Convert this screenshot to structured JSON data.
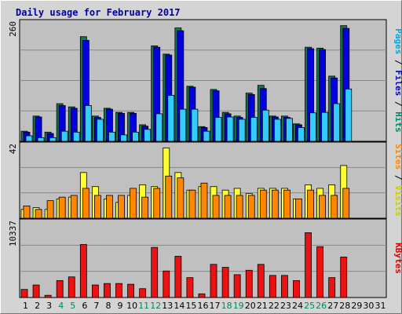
{
  "chart_data": {
    "type": "bar",
    "title": "Daily usage for February 2017",
    "categories": [
      "1",
      "2",
      "3",
      "4",
      "5",
      "6",
      "7",
      "8",
      "9",
      "10",
      "11",
      "12",
      "13",
      "14",
      "15",
      "16",
      "17",
      "18",
      "19",
      "20",
      "21",
      "22",
      "23",
      "24",
      "25",
      "26",
      "27",
      "28",
      "29",
      "30",
      "31"
    ],
    "weekend_days": [
      "4",
      "5",
      "11",
      "12",
      "18",
      "19",
      "25",
      "26"
    ],
    "panels": [
      {
        "name": "hits-files-pages",
        "ymax_label": "260",
        "ylim": [
          0,
          260
        ],
        "axis_labels": [
          {
            "text": "Pages",
            "color": "#00aadd"
          },
          {
            "text": " / ",
            "color": "#000000"
          },
          {
            "text": "Files",
            "color": "#0000cc"
          },
          {
            "text": " / ",
            "color": "#000000"
          },
          {
            "text": "Hits",
            "color": "#008866"
          }
        ],
        "series": [
          {
            "name": "Hits",
            "color": "#117755",
            "values": [
              22,
              55,
              20,
              82,
              75,
              228,
              55,
              72,
              63,
              63,
              36,
              208,
              190,
              247,
              120,
              32,
              113,
              63,
              55,
              105,
              122,
              55,
              55,
              38,
              205,
              203,
              142,
              252,
              0,
              0,
              0
            ]
          },
          {
            "name": "Files",
            "color": "#0000dd",
            "values": [
              20,
              53,
              17,
              78,
              72,
              220,
              52,
              70,
              61,
              61,
              33,
              205,
              188,
              241,
              118,
              30,
              110,
              60,
              52,
              102,
              115,
              53,
              52,
              36,
              202,
              200,
              138,
              246,
              0,
              0,
              0
            ]
          },
          {
            "name": "Pages",
            "color": "#33ccff",
            "values": [
              12,
              8,
              8,
              22,
              20,
              78,
              48,
              20,
              14,
              20,
              26,
              60,
              100,
              70,
              70,
              22,
              52,
              53,
              48,
              52,
              68,
              48,
              50,
              30,
              62,
              63,
              82,
              114,
              0,
              0,
              0
            ]
          }
        ]
      },
      {
        "name": "visits-sites",
        "ymax_label": "42",
        "ylim": [
          0,
          42
        ],
        "axis_labels": [
          {
            "text": "Sites",
            "color": "#ff8800"
          },
          {
            "text": " / ",
            "color": "#000000"
          },
          {
            "text": "Visits",
            "color": "#cccc00"
          }
        ],
        "series": [
          {
            "name": "Visits",
            "color": "#ffff33",
            "values": [
              5,
              6,
              5,
              11,
              12,
              26,
              18,
              11,
              9,
              13,
              19,
              18,
              40,
              26,
              16,
              18,
              18,
              16,
              17,
              14,
              17,
              17,
              17,
              11,
              19,
              17,
              19,
              30,
              0,
              0,
              0
            ]
          },
          {
            "name": "Sites",
            "color": "#ff8800",
            "values": [
              7,
              5,
              10,
              12,
              13,
              17,
              13,
              13,
              13,
              17,
              12,
              17,
              24,
              23,
              16,
              20,
              13,
              13,
              13,
              13,
              16,
              16,
              16,
              11,
              16,
              13,
              13,
              17,
              0,
              0,
              0
            ]
          }
        ]
      },
      {
        "name": "kbytes",
        "ymax_label": "10337",
        "ylim": [
          0,
          10337
        ],
        "axis_labels": [
          {
            "text": "KBytes",
            "color": "#dd0000"
          }
        ],
        "series": [
          {
            "name": "KBytes",
            "color": "#ee1111",
            "values": [
              1100,
              1700,
              300,
              2300,
              2800,
              7200,
              1700,
              1900,
              1900,
              1800,
              1200,
              6800,
              3600,
              5600,
              2700,
              500,
              4500,
              4100,
              3100,
              3700,
              4500,
              3000,
              3000,
              2300,
              8800,
              6900,
              2700,
              5500,
              0,
              0,
              0
            ]
          }
        ]
      }
    ]
  }
}
